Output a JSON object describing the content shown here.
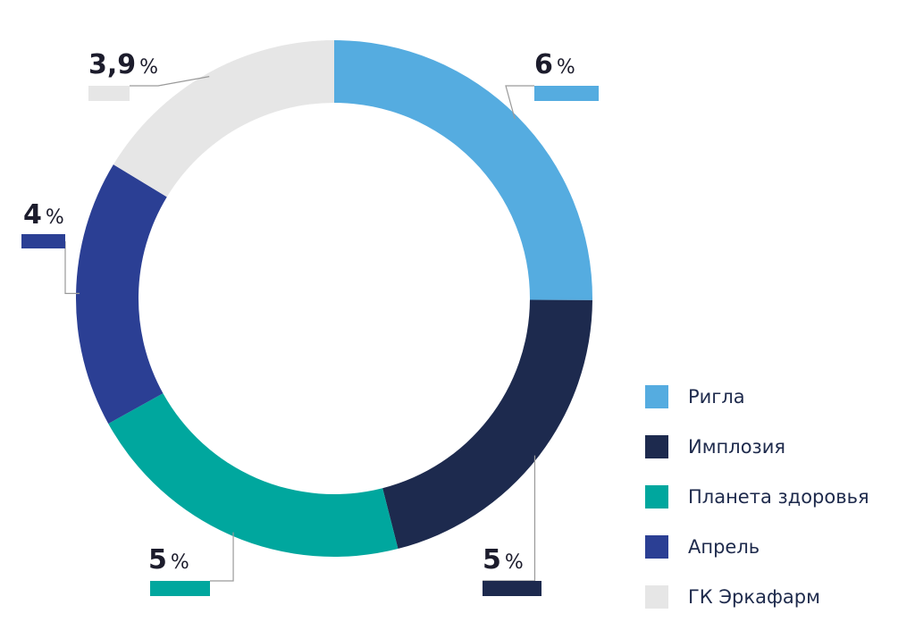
{
  "chart_data": {
    "type": "pie",
    "variant": "donut",
    "slices": [
      {
        "name": "Ригла",
        "value": 6,
        "label": "6",
        "color": "#55ace0"
      },
      {
        "name": "Имплозия",
        "value": 5,
        "label": "5",
        "color": "#1d2a4e"
      },
      {
        "name": "Планета здоровья",
        "value": 5,
        "label": "5",
        "color": "#00a79e"
      },
      {
        "name": "Апрель",
        "value": 4,
        "label": "4",
        "color": "#2b3f94"
      },
      {
        "name": "ГК Эркафарм",
        "value": 3.9,
        "label": "3,9",
        "color": "#e6e6e6"
      }
    ],
    "unit": "%",
    "legend_position": "bottom-right"
  }
}
